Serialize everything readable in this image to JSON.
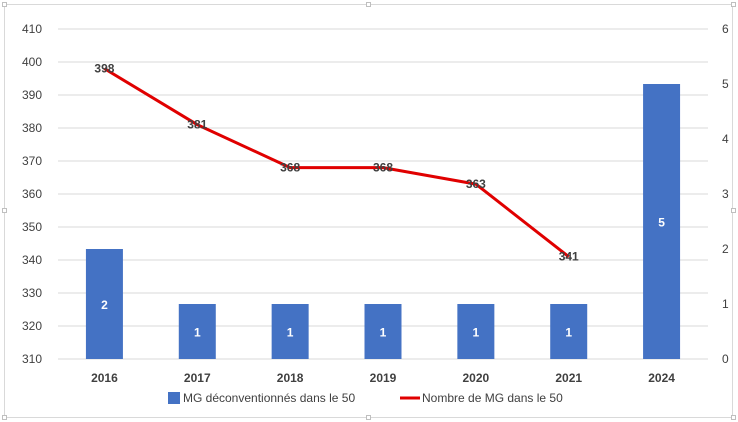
{
  "chart_data": {
    "type": "bar",
    "categories": [
      "2016",
      "2017",
      "2018",
      "2019",
      "2020",
      "2021",
      "2024"
    ],
    "series": [
      {
        "name": "MG déconventionnés dans le 50",
        "type": "bar",
        "axis": "right",
        "values": [
          2,
          1,
          1,
          1,
          1,
          1,
          5
        ],
        "color": "#4472C4"
      },
      {
        "name": "Nombre de MG dans le 50",
        "type": "line",
        "axis": "left",
        "values": [
          398,
          381,
          368,
          368,
          363,
          341,
          null
        ],
        "color": "#E00000"
      }
    ],
    "left_axis": {
      "min": 310,
      "max": 410,
      "step": 10
    },
    "right_axis": {
      "min": 0,
      "max": 6,
      "step": 1
    },
    "grid": true,
    "legend_position": "bottom"
  }
}
